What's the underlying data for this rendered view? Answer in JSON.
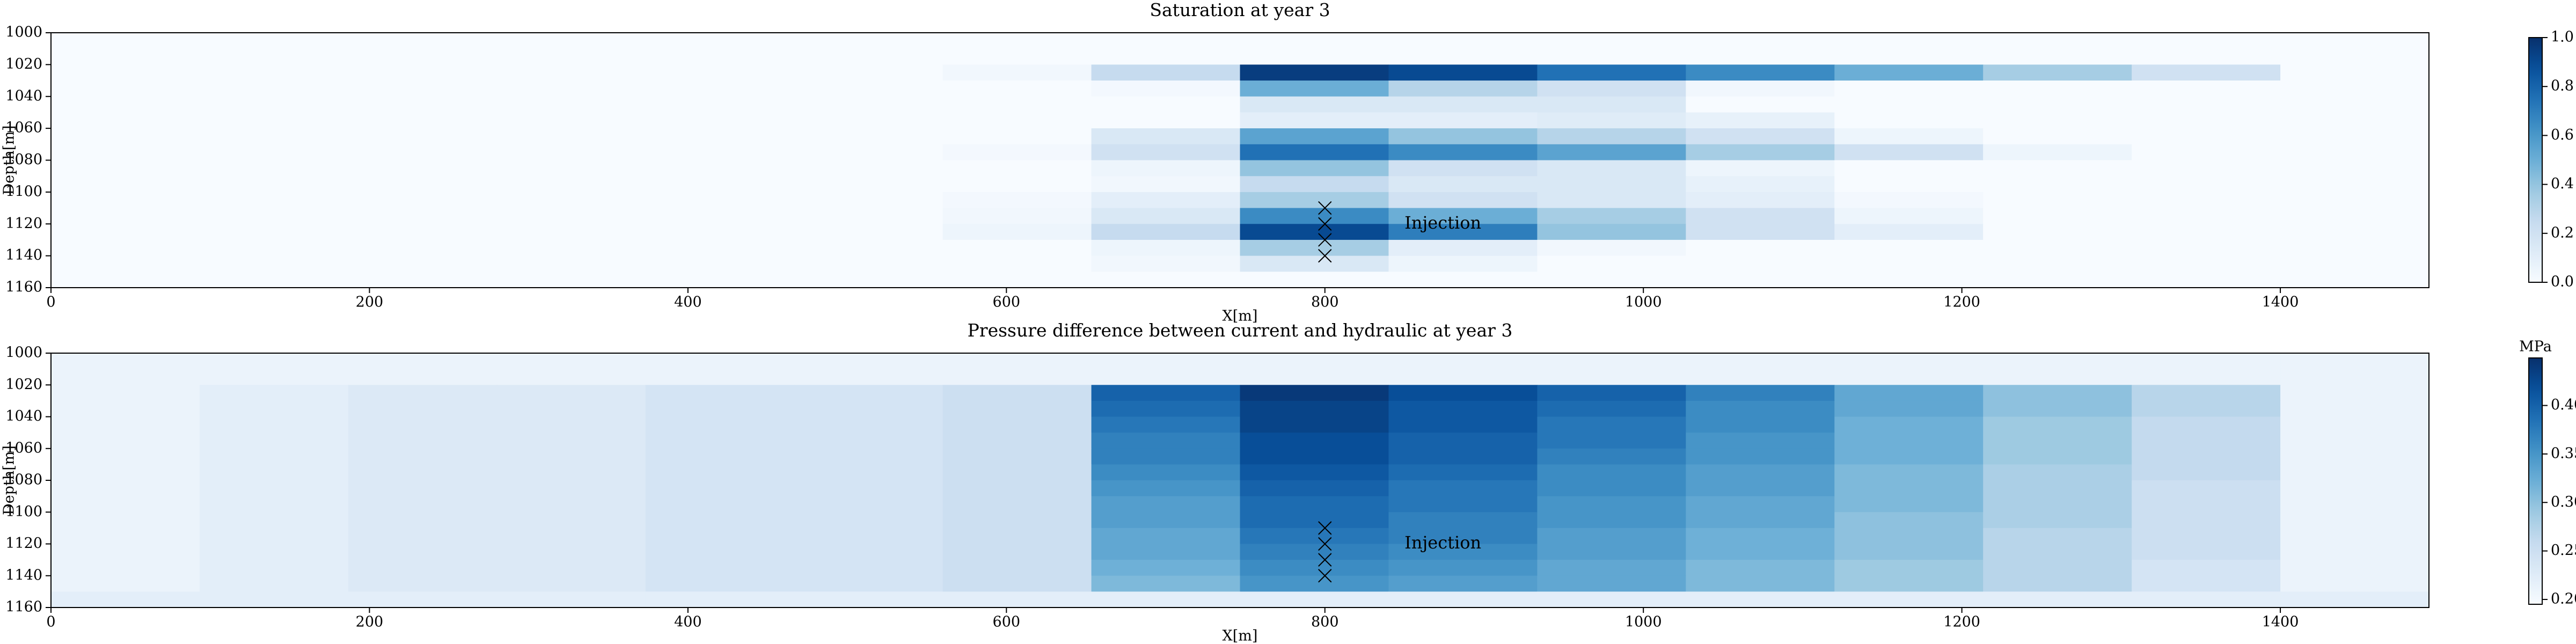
{
  "chart_data": [
    {
      "type": "heatmap",
      "title": "Saturation at year 3",
      "xlabel": "X[m]",
      "ylabel": "Depth[m]",
      "x_edges": [
        0,
        93.33,
        186.67,
        280,
        373.33,
        466.67,
        560,
        653.33,
        746.67,
        840,
        933.33,
        1026.67,
        1120,
        1213.33,
        1306.67,
        1400,
        1493.33
      ],
      "y_edges": [
        1000,
        1010,
        1020,
        1030,
        1040,
        1050,
        1060,
        1070,
        1080,
        1090,
        1100,
        1110,
        1120,
        1130,
        1140,
        1150,
        1160
      ],
      "values": [
        [
          0,
          0,
          0,
          0,
          0,
          0,
          0,
          0,
          0,
          0,
          0,
          0,
          0,
          0,
          0,
          0
        ],
        [
          0,
          0,
          0,
          0,
          0,
          0,
          0,
          0,
          0,
          0,
          0,
          0,
          0,
          0,
          0,
          0
        ],
        [
          0,
          0,
          0,
          0,
          0,
          0,
          0.03,
          0.25,
          0.95,
          0.9,
          0.75,
          0.65,
          0.5,
          0.35,
          0.2,
          0
        ],
        [
          0,
          0,
          0,
          0,
          0,
          0,
          0,
          0.02,
          0.5,
          0.3,
          0.2,
          0.03,
          0,
          0,
          0,
          0
        ],
        [
          0,
          0,
          0,
          0,
          0,
          0,
          0,
          0,
          0.15,
          0.15,
          0.15,
          0,
          0,
          0,
          0,
          0
        ],
        [
          0,
          0,
          0,
          0,
          0,
          0,
          0,
          0,
          0.1,
          0.1,
          0.12,
          0.08,
          0,
          0,
          0,
          0
        ],
        [
          0,
          0,
          0,
          0,
          0,
          0,
          0,
          0.15,
          0.55,
          0.4,
          0.3,
          0.2,
          0.05,
          0,
          0,
          0
        ],
        [
          0,
          0,
          0,
          0,
          0,
          0,
          0.02,
          0.2,
          0.75,
          0.65,
          0.55,
          0.35,
          0.2,
          0.05,
          0,
          0
        ],
        [
          0,
          0,
          0,
          0,
          0,
          0,
          0,
          0.05,
          0.4,
          0.2,
          0.15,
          0.05,
          0,
          0,
          0,
          0
        ],
        [
          0,
          0,
          0,
          0,
          0,
          0,
          0,
          0.03,
          0.25,
          0.15,
          0.15,
          0.08,
          0,
          0,
          0,
          0
        ],
        [
          0,
          0,
          0,
          0,
          0,
          0,
          0.02,
          0.1,
          0.35,
          0.2,
          0.15,
          0.1,
          0.02,
          0,
          0,
          0
        ],
        [
          0,
          0,
          0,
          0,
          0,
          0,
          0.03,
          0.15,
          0.65,
          0.5,
          0.35,
          0.2,
          0.05,
          0,
          0,
          0
        ],
        [
          0,
          0,
          0,
          0,
          0,
          0,
          0.05,
          0.25,
          0.9,
          0.7,
          0.4,
          0.2,
          0.1,
          0,
          0,
          0
        ],
        [
          0,
          0,
          0,
          0,
          0,
          0,
          0,
          0.05,
          0.35,
          0.1,
          0.03,
          0,
          0,
          0,
          0,
          0
        ],
        [
          0,
          0,
          0,
          0,
          0,
          0,
          0,
          0.03,
          0.15,
          0.05,
          0,
          0,
          0,
          0,
          0,
          0
        ],
        [
          0,
          0,
          0,
          0,
          0,
          0,
          0,
          0,
          0,
          0,
          0,
          0,
          0,
          0,
          0,
          0
        ]
      ],
      "xlim": [
        0,
        1493.33
      ],
      "ylim": [
        1000,
        1160
      ],
      "y_inverted": true,
      "xticks": [
        0,
        200,
        400,
        600,
        800,
        1000,
        1200,
        1400
      ],
      "yticks": [
        1000,
        1020,
        1040,
        1060,
        1080,
        1100,
        1120,
        1140,
        1160
      ],
      "colormap": "Blues",
      "clim": [
        0,
        1
      ],
      "cticks": [
        {
          "value": 0,
          "label": "0.0"
        },
        0.2,
        0.4,
        0.6,
        0.8,
        {
          "value": 1,
          "label": "1.0"
        }
      ],
      "markers": {
        "x": [
          800,
          800,
          800,
          800
        ],
        "y": [
          1110,
          1120,
          1130,
          1140
        ],
        "marker": "x"
      },
      "annotation": {
        "text": "Injection",
        "x": 850,
        "y": 1120
      }
    },
    {
      "type": "heatmap",
      "title": "Pressure difference between current and hydraulic at year 3",
      "xlabel": "X[m]",
      "ylabel": "Depth[m]",
      "x_edges": [
        0,
        93.33,
        186.67,
        280,
        373.33,
        466.67,
        560,
        653.33,
        746.67,
        840,
        933.33,
        1026.67,
        1120,
        1213.33,
        1306.67,
        1400,
        1493.33
      ],
      "y_edges": [
        1000,
        1010,
        1020,
        1030,
        1040,
        1050,
        1060,
        1070,
        1080,
        1090,
        1100,
        1110,
        1120,
        1130,
        1140,
        1150,
        1160
      ],
      "values": [
        [
          0.21,
          0.21,
          0.21,
          0.21,
          0.21,
          0.21,
          0.21,
          0.21,
          0.21,
          0.21,
          0.21,
          0.21,
          0.21,
          0.21,
          0.21,
          0.21
        ],
        [
          0.21,
          0.21,
          0.21,
          0.21,
          0.21,
          0.21,
          0.21,
          0.21,
          0.21,
          0.21,
          0.21,
          0.21,
          0.21,
          0.21,
          0.21,
          0.21
        ],
        [
          0.21,
          0.22,
          0.23,
          0.23,
          0.24,
          0.24,
          0.25,
          0.4,
          0.44,
          0.42,
          0.4,
          0.37,
          0.33,
          0.3,
          0.27,
          0.21
        ],
        [
          0.21,
          0.22,
          0.23,
          0.23,
          0.24,
          0.24,
          0.25,
          0.39,
          0.43,
          0.41,
          0.39,
          0.36,
          0.33,
          0.3,
          0.27,
          0.21
        ],
        [
          0.21,
          0.22,
          0.23,
          0.23,
          0.24,
          0.24,
          0.25,
          0.38,
          0.43,
          0.41,
          0.38,
          0.36,
          0.32,
          0.29,
          0.26,
          0.21
        ],
        [
          0.21,
          0.22,
          0.23,
          0.23,
          0.24,
          0.24,
          0.25,
          0.37,
          0.42,
          0.4,
          0.38,
          0.35,
          0.32,
          0.29,
          0.26,
          0.21
        ],
        [
          0.21,
          0.22,
          0.23,
          0.23,
          0.24,
          0.24,
          0.25,
          0.37,
          0.42,
          0.4,
          0.37,
          0.35,
          0.32,
          0.29,
          0.26,
          0.21
        ],
        [
          0.21,
          0.22,
          0.23,
          0.23,
          0.24,
          0.24,
          0.25,
          0.36,
          0.41,
          0.39,
          0.36,
          0.34,
          0.31,
          0.28,
          0.26,
          0.21
        ],
        [
          0.21,
          0.22,
          0.23,
          0.23,
          0.24,
          0.24,
          0.25,
          0.35,
          0.4,
          0.38,
          0.36,
          0.34,
          0.31,
          0.28,
          0.25,
          0.21
        ],
        [
          0.21,
          0.22,
          0.23,
          0.23,
          0.24,
          0.24,
          0.25,
          0.34,
          0.39,
          0.38,
          0.35,
          0.33,
          0.31,
          0.28,
          0.25,
          0.21
        ],
        [
          0.21,
          0.22,
          0.23,
          0.23,
          0.24,
          0.24,
          0.25,
          0.34,
          0.39,
          0.37,
          0.35,
          0.33,
          0.3,
          0.28,
          0.25,
          0.21
        ],
        [
          0.21,
          0.22,
          0.23,
          0.23,
          0.24,
          0.24,
          0.25,
          0.33,
          0.38,
          0.37,
          0.34,
          0.32,
          0.3,
          0.27,
          0.25,
          0.21
        ],
        [
          0.21,
          0.22,
          0.23,
          0.23,
          0.24,
          0.24,
          0.25,
          0.33,
          0.37,
          0.36,
          0.34,
          0.32,
          0.3,
          0.27,
          0.25,
          0.21
        ],
        [
          0.21,
          0.22,
          0.23,
          0.23,
          0.24,
          0.24,
          0.25,
          0.32,
          0.36,
          0.35,
          0.33,
          0.31,
          0.29,
          0.27,
          0.24,
          0.21
        ],
        [
          0.21,
          0.22,
          0.23,
          0.23,
          0.24,
          0.24,
          0.25,
          0.31,
          0.35,
          0.34,
          0.33,
          0.31,
          0.29,
          0.27,
          0.24,
          0.21
        ],
        [
          0.22,
          0.22,
          0.22,
          0.22,
          0.22,
          0.22,
          0.22,
          0.22,
          0.22,
          0.22,
          0.22,
          0.22,
          0.22,
          0.22,
          0.22,
          0.22
        ]
      ],
      "xlim": [
        0,
        1493.33
      ],
      "ylim": [
        1000,
        1160
      ],
      "y_inverted": true,
      "xticks": [
        0,
        200,
        400,
        600,
        800,
        1000,
        1200,
        1400
      ],
      "yticks": [
        1000,
        1020,
        1040,
        1060,
        1080,
        1100,
        1120,
        1140,
        1160
      ],
      "colormap": "Blues",
      "clim": [
        0.195,
        0.449
      ],
      "cticks": [
        {
          "value": 0.2,
          "label": "0.20"
        },
        0.25,
        {
          "value": 0.3,
          "label": "0.30"
        },
        0.35,
        {
          "value": 0.4,
          "label": "0.40"
        }
      ],
      "colorbar_label": "MPa",
      "markers": {
        "x": [
          800,
          800,
          800,
          800
        ],
        "y": [
          1110,
          1120,
          1130,
          1140
        ],
        "marker": "x"
      },
      "annotation": {
        "text": "Injection",
        "x": 850,
        "y": 1120
      }
    }
  ]
}
